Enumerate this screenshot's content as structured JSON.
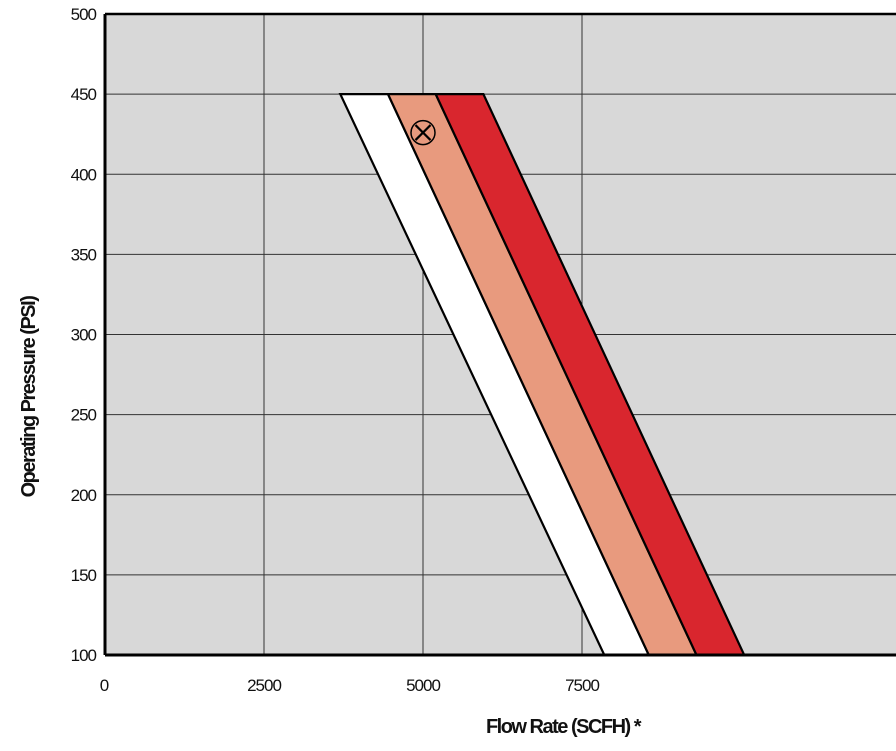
{
  "chart_data": {
    "type": "area",
    "xlabel": "Flow Rate (SCFH) *",
    "ylabel": "Operating Pressure (PSI)",
    "xlim": [
      0,
      10000
    ],
    "ylim": [
      100,
      500
    ],
    "x_ticks": [
      {
        "value": 0,
        "label": "0"
      },
      {
        "value": 2500,
        "label": "2500"
      },
      {
        "value": 5000,
        "label": "5000"
      },
      {
        "value": 7500,
        "label": "7500"
      }
    ],
    "y_ticks": [
      100,
      150,
      200,
      250,
      300,
      350,
      400,
      450,
      500
    ],
    "grid": true,
    "background_color": "#d8d8d8",
    "series": [
      {
        "fill": "#ffffff",
        "points": [
          [
            3700,
            450
          ],
          [
            4450,
            450
          ],
          [
            8550,
            100
          ],
          [
            7850,
            100
          ]
        ]
      },
      {
        "fill": "#e89a7e",
        "points": [
          [
            4450,
            450
          ],
          [
            5200,
            450
          ],
          [
            9300,
            100
          ],
          [
            8550,
            100
          ]
        ]
      },
      {
        "fill": "#d9262e",
        "points": [
          [
            5200,
            450
          ],
          [
            5950,
            450
          ],
          [
            10050,
            100
          ],
          [
            9300,
            100
          ]
        ]
      }
    ],
    "marker": {
      "x": 5000,
      "y": 426,
      "symbol": "circle-x"
    }
  }
}
